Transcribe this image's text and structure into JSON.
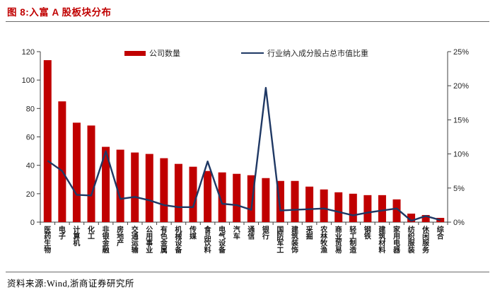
{
  "header": {
    "title": "图 8:入富 A 股板块分布"
  },
  "footer": {
    "source": "资料来源:Wind,浙商证券研究所"
  },
  "colors": {
    "title": "#c00000",
    "bar": "#c00000",
    "line": "#1f3864",
    "axis": "#404040",
    "tick_label": "#262626"
  },
  "chart_data": {
    "type": "bar",
    "subtype": "dual-axis bar + line",
    "title": "入富 A 股板块分布",
    "grid": false,
    "legend_position": "top",
    "categories": [
      "医药生物",
      "电子",
      "计算机",
      "化工",
      "非银金融",
      "房地产",
      "交通运输",
      "公用事业",
      "有色金属",
      "机械设备",
      "传媒",
      "食品饮料",
      "电气设备",
      "汽车",
      "通信",
      "银行",
      "国防军工",
      "建筑装饰",
      "采掘",
      "农林牧渔",
      "商业贸易",
      "轻工制造",
      "钢铁",
      "建筑材料",
      "家用电器",
      "纺织服装",
      "休闲服务",
      "综合"
    ],
    "series": [
      {
        "name": "公司数量",
        "type": "bar",
        "axis": "left",
        "values": [
          114,
          85,
          70,
          68,
          53,
          51,
          49,
          48,
          45,
          41,
          39,
          36,
          35,
          34,
          33,
          31,
          29,
          29,
          25,
          23,
          21,
          20,
          19,
          19,
          16,
          6,
          5,
          3
        ]
      },
      {
        "name": "行业纳入成分股占总市值比重",
        "type": "line",
        "axis": "right",
        "unit": "%",
        "values": [
          9.0,
          7.5,
          4.0,
          3.9,
          10.4,
          3.4,
          3.7,
          3.2,
          2.5,
          2.2,
          2.2,
          8.9,
          2.7,
          2.5,
          1.8,
          19.7,
          1.7,
          1.8,
          1.9,
          2.0,
          1.5,
          1.0,
          1.4,
          1.7,
          2.0,
          0.2,
          0.9,
          0.3
        ]
      }
    ],
    "left_axis": {
      "min": 0,
      "max": 120,
      "step": 20,
      "ticks": [
        "0",
        "20",
        "40",
        "60",
        "80",
        "100",
        "120"
      ]
    },
    "right_axis": {
      "min": 0,
      "max": 25,
      "step": 5,
      "ticks": [
        "0%",
        "5%",
        "10%",
        "15%",
        "20%",
        "25%"
      ]
    }
  }
}
